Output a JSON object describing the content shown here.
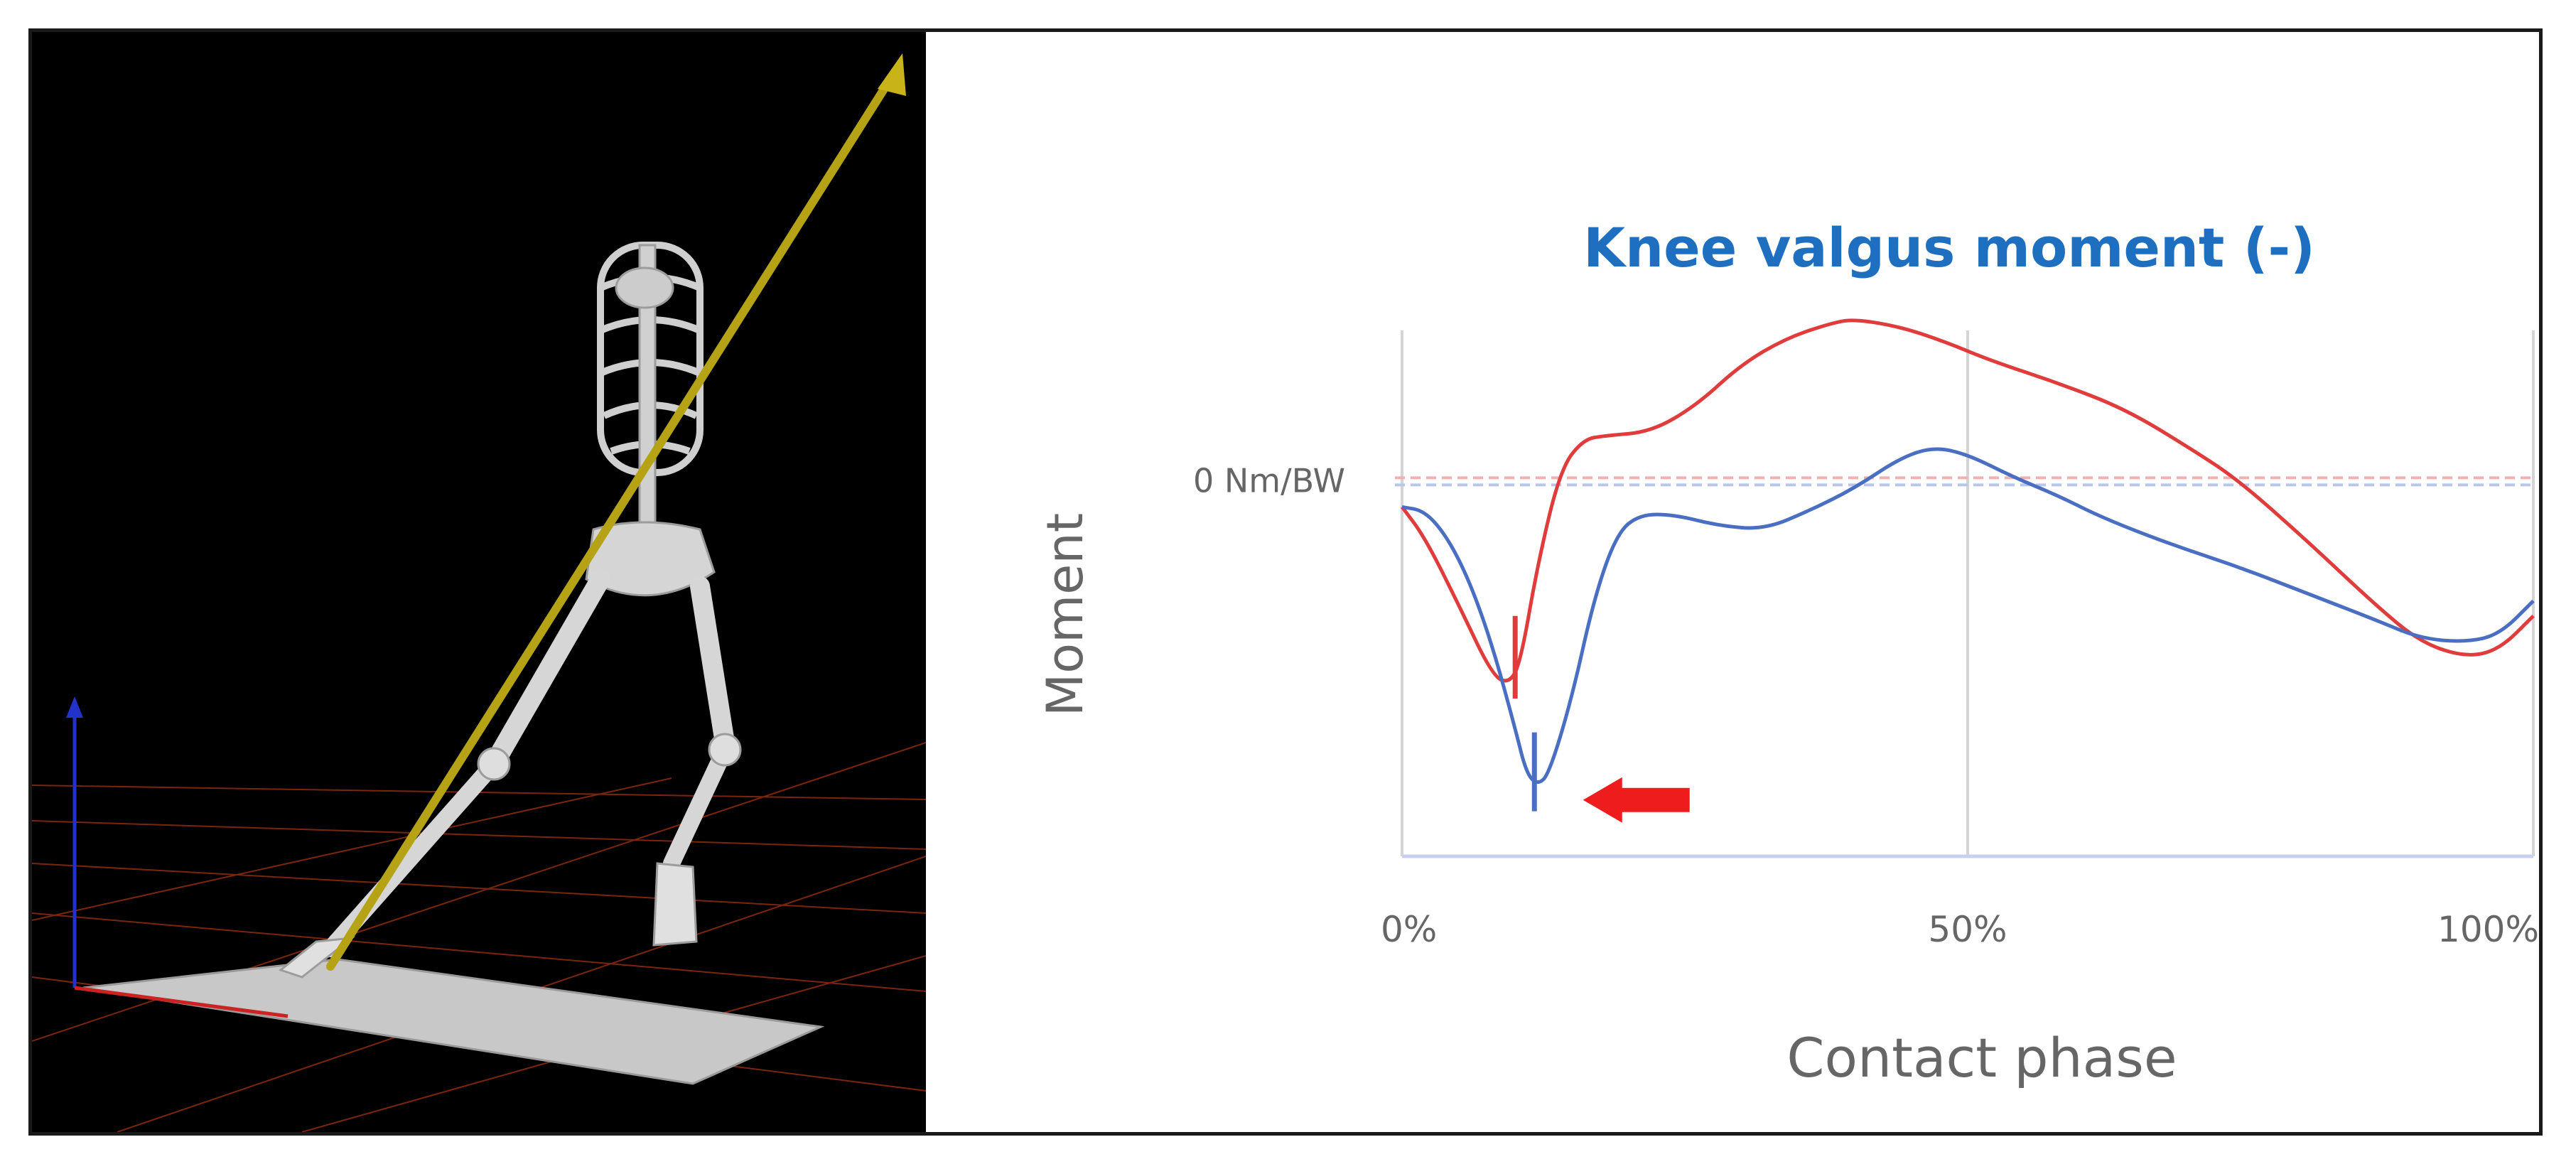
{
  "chart_data": {
    "type": "line",
    "title": "Knee valgus moment (-)",
    "xlabel": "Contact phase",
    "ylabel": "Moment",
    "xlim": [
      0,
      100
    ],
    "ylim": [
      -1,
      0.4
    ],
    "x_ticks": [
      {
        "value": 0,
        "label": "0%"
      },
      {
        "value": 50,
        "label": "50%"
      },
      {
        "value": 100,
        "label": "100%"
      }
    ],
    "reference_line": {
      "value": 0,
      "label": "0 Nm/BW"
    },
    "grid": "vertical",
    "series": [
      {
        "color": "#e03c3c",
        "points": [
          [
            0,
            -0.07
          ],
          [
            2,
            -0.15
          ],
          [
            5,
            -0.33
          ],
          [
            8,
            -0.52
          ],
          [
            9.5,
            -0.54
          ],
          [
            10.5,
            -0.48
          ],
          [
            12,
            -0.22
          ],
          [
            14,
            0.03
          ],
          [
            16,
            0.11
          ],
          [
            18,
            0.12
          ],
          [
            22,
            0.13
          ],
          [
            26,
            0.2
          ],
          [
            30,
            0.31
          ],
          [
            34,
            0.38
          ],
          [
            38,
            0.42
          ],
          [
            40,
            0.43
          ],
          [
            44,
            0.41
          ],
          [
            48,
            0.37
          ],
          [
            52,
            0.32
          ],
          [
            58,
            0.26
          ],
          [
            64,
            0.19
          ],
          [
            70,
            0.08
          ],
          [
            74,
            0.0
          ],
          [
            80,
            -0.16
          ],
          [
            86,
            -0.33
          ],
          [
            90,
            -0.43
          ],
          [
            94,
            -0.47
          ],
          [
            97,
            -0.45
          ],
          [
            100,
            -0.36
          ]
        ],
        "marker": {
          "x": 10,
          "y_from": -0.36,
          "y_to": -0.58
        }
      },
      {
        "color": "#4a6fc2",
        "points": [
          [
            0,
            -0.07
          ],
          [
            2,
            -0.08
          ],
          [
            4,
            -0.15
          ],
          [
            6,
            -0.27
          ],
          [
            8,
            -0.44
          ],
          [
            10,
            -0.66
          ],
          [
            11,
            -0.78
          ],
          [
            12,
            -0.81
          ],
          [
            13,
            -0.78
          ],
          [
            15,
            -0.58
          ],
          [
            17,
            -0.31
          ],
          [
            19,
            -0.14
          ],
          [
            21,
            -0.09
          ],
          [
            24,
            -0.09
          ],
          [
            28,
            -0.12
          ],
          [
            32,
            -0.13
          ],
          [
            36,
            -0.08
          ],
          [
            40,
            -0.02
          ],
          [
            44,
            0.06
          ],
          [
            47,
            0.09
          ],
          [
            50,
            0.07
          ],
          [
            54,
            0.01
          ],
          [
            58,
            -0.04
          ],
          [
            62,
            -0.1
          ],
          [
            68,
            -0.17
          ],
          [
            74,
            -0.23
          ],
          [
            80,
            -0.3
          ],
          [
            86,
            -0.37
          ],
          [
            90,
            -0.42
          ],
          [
            94,
            -0.43
          ],
          [
            97,
            -0.41
          ],
          [
            100,
            -0.32
          ]
        ],
        "marker": {
          "x": 11.7,
          "y_from": -0.67,
          "y_to": -0.88
        }
      }
    ],
    "annotation": {
      "type": "arrow",
      "color": "#ee1c1c",
      "points_to_x": 16,
      "y": -0.85
    }
  }
}
